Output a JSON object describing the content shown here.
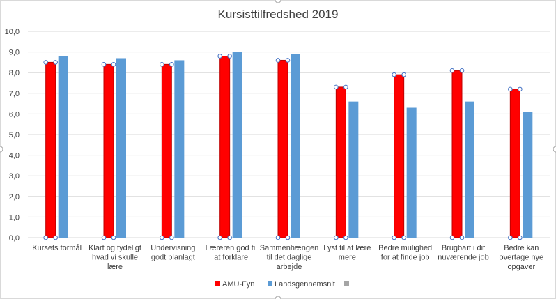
{
  "chart_data": {
    "type": "bar",
    "title": "Kursisttilfredshed 2019",
    "xlabel": "",
    "ylabel": "",
    "ylim": [
      0,
      10
    ],
    "y_ticks": [
      "0,0",
      "1,0",
      "2,0",
      "3,0",
      "4,0",
      "5,0",
      "6,0",
      "7,0",
      "8,0",
      "9,0",
      "10,0"
    ],
    "grid": true,
    "legend_position": "bottom",
    "categories": [
      [
        "Kursets formål"
      ],
      [
        "Klart og tydeligt",
        "hvad vi skulle",
        "lære"
      ],
      [
        "Undervisning",
        "godt planlagt"
      ],
      [
        "Læreren god til",
        "at forklare"
      ],
      [
        "Sammenhængen",
        "til det daglige",
        "arbejde"
      ],
      [
        "Lyst til at lære",
        "mere"
      ],
      [
        "Bedre mulighed",
        "for at finde job"
      ],
      [
        "Brugbart i dit",
        "nuværende job"
      ],
      [
        "Bedre kan",
        "overtage nye",
        "opgaver"
      ]
    ],
    "series": [
      {
        "name": "AMU-Fyn",
        "color": "#ff0000",
        "border": "#c00000",
        "selected": true,
        "values": [
          8.5,
          8.4,
          8.4,
          8.8,
          8.6,
          7.3,
          7.9,
          8.1,
          7.2
        ]
      },
      {
        "name": "Landsgennemsnit",
        "color": "#5b9bd5",
        "values": [
          8.8,
          8.7,
          8.6,
          9.0,
          8.9,
          6.6,
          6.3,
          6.6,
          6.1
        ]
      }
    ],
    "legend_extra": {
      "name": "",
      "color": "#a5a5a5"
    }
  }
}
